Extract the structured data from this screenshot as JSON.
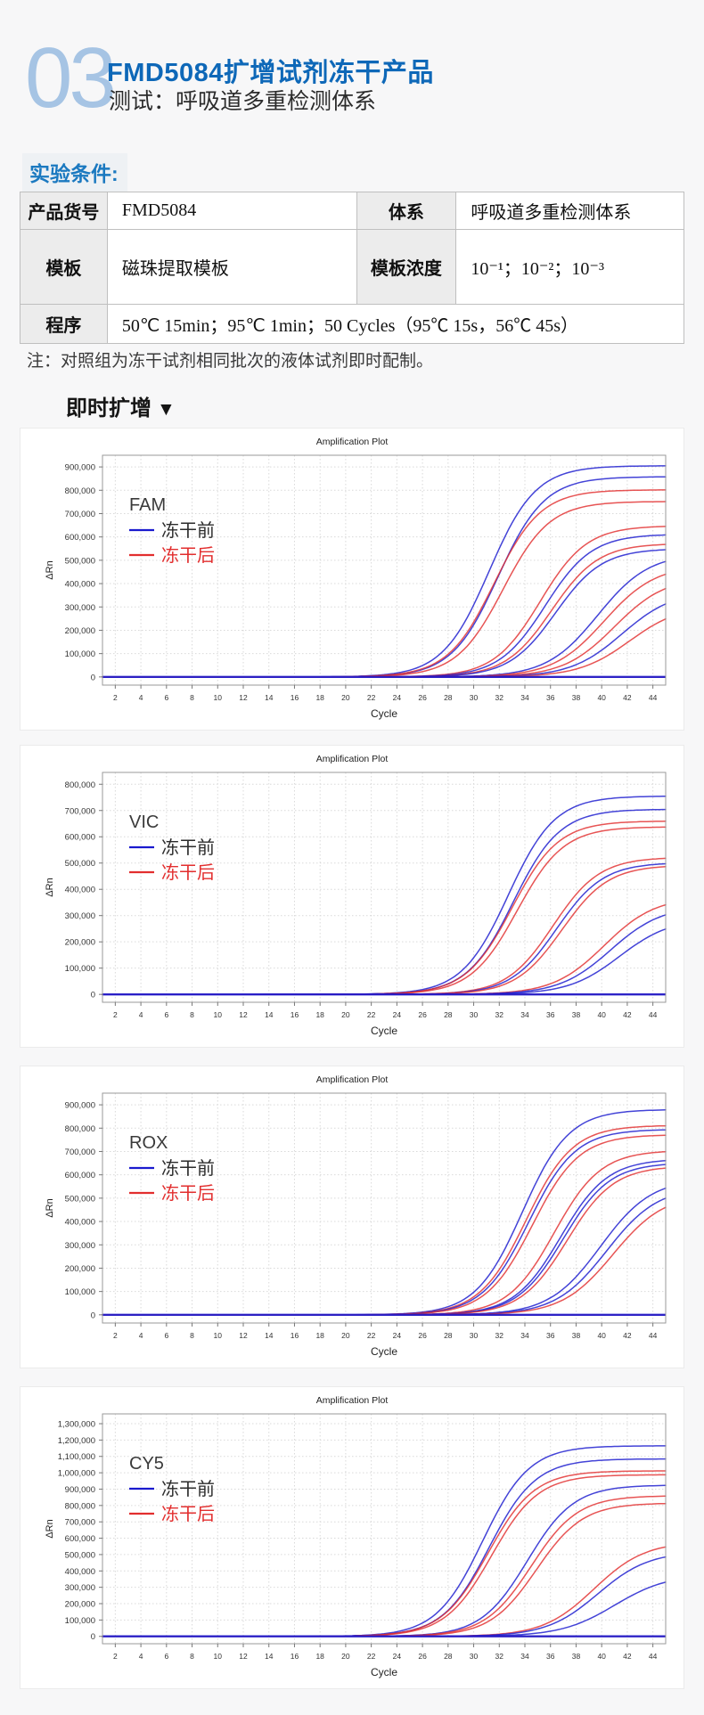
{
  "header": {
    "number": "03",
    "title": "FMD5084扩增试剂冻干产品",
    "subtitle": "测试：呼吸道多重检测体系"
  },
  "section_label": "实验条件:",
  "table": {
    "headers": {
      "product_code": "产品货号",
      "system": "体系",
      "template": "模板",
      "template_conc": "模板浓度",
      "program": "程序"
    },
    "values": {
      "product_code": "FMD5084",
      "system": "呼吸道多重检测体系",
      "template": "磁珠提取模板",
      "template_conc": "10⁻¹；10⁻²；10⁻³",
      "program": "50℃ 15min；95℃ 1min；50 Cycles（95℃ 15s，56℃ 45s）"
    }
  },
  "note": {
    "text": "注：对照组为冻干试剂相同批次的液体试剂即时配制。"
  },
  "realtime_heading": {
    "label": "即时扩增",
    "arrow": "▼"
  },
  "colors": {
    "before": "#1a1ace",
    "after": "#e22e2e",
    "accent_blue": "#0e68b8"
  },
  "chart_data": [
    {
      "type": "line",
      "channel": "FAM",
      "title": "Amplification Plot",
      "xlabel": "Cycle",
      "ylabel": "ΔRn",
      "legend": {
        "before": "冻干前",
        "after": "冻干后"
      },
      "x_range": [
        1,
        45
      ],
      "xticks": [
        2,
        4,
        6,
        8,
        10,
        12,
        14,
        16,
        18,
        20,
        22,
        24,
        26,
        28,
        30,
        32,
        34,
        36,
        38,
        40,
        42,
        44
      ],
      "ylim": [
        -35000,
        950000
      ],
      "yticks": [
        0,
        100000,
        200000,
        300000,
        400000,
        500000,
        600000,
        700000,
        800000,
        900000
      ],
      "series": [
        {
          "group": "before",
          "ct": 31.2,
          "plateau": 905000
        },
        {
          "group": "before",
          "ct": 31.9,
          "plateau": 858000
        },
        {
          "group": "after",
          "ct": 31.6,
          "plateau": 802000
        },
        {
          "group": "after",
          "ct": 32.3,
          "plateau": 752000
        },
        {
          "group": "after",
          "ct": 35.2,
          "plateau": 648000
        },
        {
          "group": "before",
          "ct": 35.6,
          "plateau": 612000
        },
        {
          "group": "after",
          "ct": 36.1,
          "plateau": 572000
        },
        {
          "group": "before",
          "ct": 36.4,
          "plateau": 550000
        },
        {
          "group": "before",
          "ct": 39.7,
          "plateau": 530000,
          "k": 0.5
        },
        {
          "group": "after",
          "ct": 40.2,
          "plateau": 480000,
          "k": 0.5
        },
        {
          "group": "after",
          "ct": 41.0,
          "plateau": 430000,
          "k": 0.5
        },
        {
          "group": "before",
          "ct": 41.6,
          "plateau": 370000,
          "k": 0.5
        },
        {
          "group": "after",
          "ct": 42.2,
          "plateau": 310000,
          "k": 0.5
        },
        {
          "group": "after",
          "flat": true
        },
        {
          "group": "before",
          "flat": true
        }
      ]
    },
    {
      "type": "line",
      "channel": "VIC",
      "title": "Amplification Plot",
      "xlabel": "Cycle",
      "ylabel": "ΔRn",
      "legend": {
        "before": "冻干前",
        "after": "冻干后"
      },
      "x_range": [
        1,
        45
      ],
      "xticks": [
        2,
        4,
        6,
        8,
        10,
        12,
        14,
        16,
        18,
        20,
        22,
        24,
        26,
        28,
        30,
        32,
        34,
        36,
        38,
        40,
        42,
        44
      ],
      "ylim": [
        -30000,
        845000
      ],
      "yticks": [
        0,
        100000,
        200000,
        300000,
        400000,
        500000,
        600000,
        700000,
        800000
      ],
      "series": [
        {
          "group": "before",
          "ct": 32.7,
          "plateau": 755000
        },
        {
          "group": "before",
          "ct": 33.1,
          "plateau": 705000
        },
        {
          "group": "after",
          "ct": 33.0,
          "plateau": 660000
        },
        {
          "group": "after",
          "ct": 33.4,
          "plateau": 638000
        },
        {
          "group": "after",
          "ct": 36.2,
          "plateau": 522000
        },
        {
          "group": "before",
          "ct": 36.5,
          "plateau": 502000
        },
        {
          "group": "after",
          "ct": 36.9,
          "plateau": 492000
        },
        {
          "group": "after",
          "ct": 40.2,
          "plateau": 372000,
          "k": 0.5
        },
        {
          "group": "before",
          "ct": 40.7,
          "plateau": 338000,
          "k": 0.5
        },
        {
          "group": "before",
          "ct": 41.4,
          "plateau": 290000,
          "k": 0.5
        },
        {
          "group": "after",
          "flat": true
        },
        {
          "group": "before",
          "flat": true
        }
      ]
    },
    {
      "type": "line",
      "channel": "ROX",
      "title": "Amplification Plot",
      "xlabel": "Cycle",
      "ylabel": "ΔRn",
      "legend": {
        "before": "冻干前",
        "after": "冻干后"
      },
      "x_range": [
        1,
        45
      ],
      "xticks": [
        2,
        4,
        6,
        8,
        10,
        12,
        14,
        16,
        18,
        20,
        22,
        24,
        26,
        28,
        30,
        32,
        34,
        36,
        38,
        40,
        42,
        44
      ],
      "ylim": [
        -35000,
        950000
      ],
      "yticks": [
        0,
        100000,
        200000,
        300000,
        400000,
        500000,
        600000,
        700000,
        800000,
        900000
      ],
      "series": [
        {
          "group": "before",
          "ct": 33.8,
          "plateau": 880000
        },
        {
          "group": "after",
          "ct": 34.1,
          "plateau": 812000
        },
        {
          "group": "before",
          "ct": 34.3,
          "plateau": 795000
        },
        {
          "group": "after",
          "ct": 34.6,
          "plateau": 772000
        },
        {
          "group": "after",
          "ct": 36.3,
          "plateau": 705000
        },
        {
          "group": "before",
          "ct": 36.8,
          "plateau": 668000
        },
        {
          "group": "before",
          "ct": 37.0,
          "plateau": 652000
        },
        {
          "group": "after",
          "ct": 37.3,
          "plateau": 638000
        },
        {
          "group": "before",
          "ct": 39.9,
          "plateau": 585000,
          "k": 0.5
        },
        {
          "group": "before",
          "ct": 40.4,
          "plateau": 550000,
          "k": 0.5
        },
        {
          "group": "after",
          "ct": 40.9,
          "plateau": 520000,
          "k": 0.5
        },
        {
          "group": "after",
          "flat": true
        },
        {
          "group": "before",
          "flat": true
        }
      ]
    },
    {
      "type": "line",
      "channel": "CY5",
      "title": "Amplification Plot",
      "xlabel": "Cycle",
      "ylabel": "ΔRn",
      "legend": {
        "before": "冻干前",
        "after": "冻干后"
      },
      "x_range": [
        1,
        45
      ],
      "xticks": [
        2,
        4,
        6,
        8,
        10,
        12,
        14,
        16,
        18,
        20,
        22,
        24,
        26,
        28,
        30,
        32,
        34,
        36,
        38,
        40,
        42,
        44
      ],
      "ylim": [
        -45000,
        1360000
      ],
      "yticks": [
        0,
        100000,
        200000,
        300000,
        400000,
        500000,
        600000,
        700000,
        800000,
        900000,
        1000000,
        1100000,
        1200000,
        1300000
      ],
      "series": [
        {
          "group": "before",
          "ct": 30.7,
          "plateau": 1165000
        },
        {
          "group": "before",
          "ct": 31.2,
          "plateau": 1085000
        },
        {
          "group": "after",
          "ct": 31.1,
          "plateau": 1012000
        },
        {
          "group": "after",
          "ct": 31.4,
          "plateau": 988000
        },
        {
          "group": "before",
          "ct": 34.2,
          "plateau": 925000
        },
        {
          "group": "after",
          "ct": 34.5,
          "plateau": 860000
        },
        {
          "group": "after",
          "ct": 34.9,
          "plateau": 815000
        },
        {
          "group": "after",
          "ct": 39.4,
          "plateau": 580000,
          "k": 0.5
        },
        {
          "group": "before",
          "ct": 39.7,
          "plateau": 520000,
          "k": 0.5
        },
        {
          "group": "before",
          "ct": 41.0,
          "plateau": 380000,
          "k": 0.48
        },
        {
          "group": "after",
          "flat": true
        },
        {
          "group": "before",
          "flat": true
        }
      ]
    }
  ]
}
